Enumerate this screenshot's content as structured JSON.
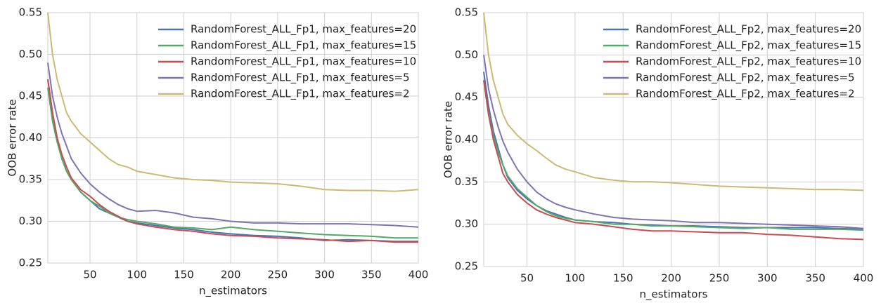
{
  "chart_data": [
    {
      "type": "line",
      "xlabel": "n_estimators",
      "ylabel": "OOB error rate",
      "x": [
        5,
        10,
        15,
        20,
        25,
        30,
        40,
        50,
        60,
        70,
        80,
        90,
        100,
        120,
        140,
        160,
        180,
        200,
        225,
        250,
        275,
        300,
        325,
        350,
        375,
        400
      ],
      "xlim": [
        5,
        400
      ],
      "xticks": [
        50,
        100,
        150,
        200,
        250,
        300,
        350,
        400
      ],
      "ylim": [
        0.25,
        0.55
      ],
      "yticks": [
        0.25,
        {
          "value": 0.3,
          "label": "0.30"
        },
        0.35,
        {
          "value": 0.4,
          "label": "0.40"
        },
        0.45,
        {
          "value": 0.5,
          "label": "0.50"
        },
        0.55
      ],
      "grid": true,
      "legend": "upper right",
      "series": [
        {
          "name": "RandomForest_ALL_Fp1, max_features=20",
          "color": "#4c72b0",
          "values": [
            0.47,
            0.43,
            0.4,
            0.375,
            0.36,
            0.35,
            0.335,
            0.325,
            0.315,
            0.31,
            0.305,
            0.3,
            0.298,
            0.295,
            0.292,
            0.29,
            0.287,
            0.285,
            0.283,
            0.282,
            0.28,
            0.277,
            0.278,
            0.277,
            0.276,
            0.276
          ]
        },
        {
          "name": "RandomForest_ALL_Fp1, max_features=15",
          "color": "#55a868",
          "values": [
            0.46,
            0.42,
            0.395,
            0.375,
            0.36,
            0.35,
            0.335,
            0.325,
            0.318,
            0.31,
            0.305,
            0.302,
            0.3,
            0.297,
            0.293,
            0.292,
            0.29,
            0.293,
            0.29,
            0.288,
            0.286,
            0.284,
            0.283,
            0.282,
            0.28,
            0.28
          ]
        },
        {
          "name": "RandomForest_ALL_Fp1, max_features=10",
          "color": "#c44e52",
          "values": [
            0.47,
            0.43,
            0.4,
            0.38,
            0.365,
            0.352,
            0.338,
            0.33,
            0.32,
            0.312,
            0.306,
            0.3,
            0.297,
            0.293,
            0.29,
            0.288,
            0.285,
            0.283,
            0.282,
            0.28,
            0.279,
            0.278,
            0.276,
            0.277,
            0.275,
            0.275
          ]
        },
        {
          "name": "RandomForest_ALL_Fp1, max_features=5",
          "color": "#8172b2",
          "values": [
            0.49,
            0.45,
            0.425,
            0.405,
            0.39,
            0.375,
            0.358,
            0.345,
            0.335,
            0.327,
            0.32,
            0.315,
            0.312,
            0.313,
            0.31,
            0.305,
            0.303,
            0.3,
            0.298,
            0.298,
            0.297,
            0.297,
            0.297,
            0.296,
            0.295,
            0.293
          ]
        },
        {
          "name": "RandomForest_ALL_Fp1, max_features=2",
          "color": "#ccb974",
          "values": [
            0.55,
            0.5,
            0.47,
            0.45,
            0.43,
            0.42,
            0.405,
            0.395,
            0.385,
            0.375,
            0.368,
            0.365,
            0.36,
            0.356,
            0.352,
            0.35,
            0.349,
            0.347,
            0.346,
            0.345,
            0.342,
            0.338,
            0.337,
            0.337,
            0.336,
            0.338
          ]
        }
      ]
    },
    {
      "type": "line",
      "xlabel": "n_estimators",
      "ylabel": "OOB error rate",
      "x": [
        5,
        10,
        15,
        20,
        25,
        30,
        40,
        50,
        60,
        70,
        80,
        90,
        100,
        120,
        140,
        160,
        180,
        200,
        225,
        250,
        275,
        300,
        325,
        350,
        375,
        400
      ],
      "xlim": [
        5,
        400
      ],
      "xticks": [
        50,
        100,
        150,
        200,
        250,
        300,
        350,
        400
      ],
      "ylim": [
        0.25,
        0.55
      ],
      "yticks": [
        0.25,
        {
          "value": 0.3,
          "label": "0.30"
        },
        0.35,
        {
          "value": 0.4,
          "label": "0.40"
        },
        0.45,
        {
          "value": 0.5,
          "label": "0.50"
        },
        0.55
      ],
      "grid": true,
      "legend": "upper right",
      "series": [
        {
          "name": "RandomForest_ALL_Fp2, max_features=20",
          "color": "#4c72b0",
          "values": [
            0.48,
            0.44,
            0.41,
            0.39,
            0.37,
            0.355,
            0.34,
            0.33,
            0.322,
            0.316,
            0.312,
            0.308,
            0.305,
            0.303,
            0.302,
            0.3,
            0.299,
            0.298,
            0.298,
            0.297,
            0.296,
            0.296,
            0.296,
            0.296,
            0.295,
            0.294
          ]
        },
        {
          "name": "RandomForest_ALL_Fp2, max_features=15",
          "color": "#55a868",
          "values": [
            0.47,
            0.43,
            0.405,
            0.385,
            0.37,
            0.357,
            0.342,
            0.332,
            0.322,
            0.315,
            0.31,
            0.307,
            0.305,
            0.303,
            0.3,
            0.3,
            0.298,
            0.298,
            0.297,
            0.296,
            0.295,
            0.296,
            0.294,
            0.294,
            0.294,
            0.293
          ]
        },
        {
          "name": "RandomForest_ALL_Fp2, max_features=10",
          "color": "#c44e52",
          "values": [
            0.47,
            0.43,
            0.4,
            0.38,
            0.36,
            0.35,
            0.335,
            0.325,
            0.317,
            0.312,
            0.308,
            0.305,
            0.302,
            0.3,
            0.297,
            0.294,
            0.292,
            0.292,
            0.291,
            0.29,
            0.29,
            0.288,
            0.287,
            0.285,
            0.283,
            0.282
          ]
        },
        {
          "name": "RandomForest_ALL_Fp2, max_features=5",
          "color": "#8172b2",
          "values": [
            0.5,
            0.46,
            0.435,
            0.415,
            0.398,
            0.385,
            0.365,
            0.35,
            0.338,
            0.33,
            0.324,
            0.32,
            0.317,
            0.312,
            0.308,
            0.306,
            0.305,
            0.304,
            0.302,
            0.302,
            0.301,
            0.3,
            0.299,
            0.298,
            0.297,
            0.295
          ]
        },
        {
          "name": "RandomForest_ALL_Fp2, max_features=2",
          "color": "#ccb974",
          "values": [
            0.55,
            0.5,
            0.47,
            0.45,
            0.43,
            0.418,
            0.405,
            0.395,
            0.387,
            0.378,
            0.37,
            0.365,
            0.362,
            0.355,
            0.352,
            0.35,
            0.35,
            0.349,
            0.347,
            0.345,
            0.344,
            0.343,
            0.342,
            0.341,
            0.341,
            0.34
          ]
        }
      ]
    }
  ]
}
